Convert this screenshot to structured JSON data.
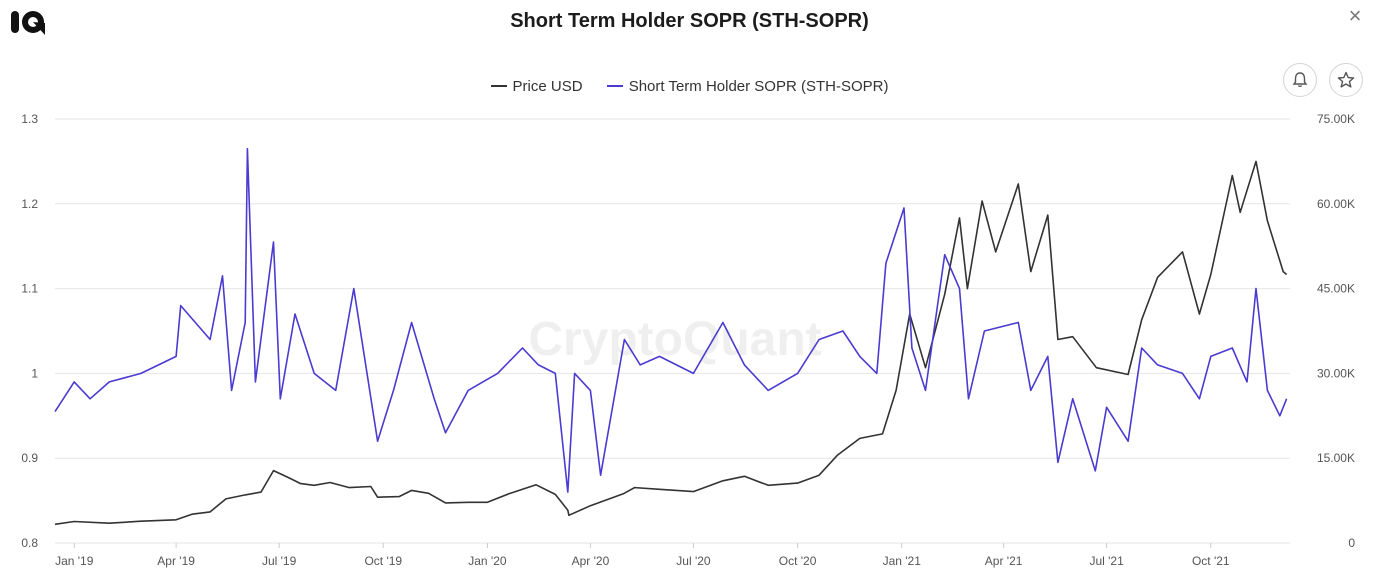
{
  "header": {
    "title": "Short Term Holder SOPR (STH-SOPR)",
    "close_label": "×"
  },
  "colors": {
    "price": "#333333",
    "sopr": "#4a3bd1",
    "grid": "#e6e6e6"
  },
  "watermark": "CryptoQuant",
  "chart_data": {
    "type": "line",
    "title": "Short Term Holder SOPR (STH-SOPR)",
    "legend_placement": "top-center",
    "grid": true,
    "x_range": [
      "2018-12-15",
      "2021-12-10"
    ],
    "x_ticks": [
      {
        "label": "Jan '19",
        "date": "2019-01-01"
      },
      {
        "label": "Apr '19",
        "date": "2019-04-01"
      },
      {
        "label": "Jul '19",
        "date": "2019-07-01"
      },
      {
        "label": "Oct '19",
        "date": "2019-10-01"
      },
      {
        "label": "Jan '20",
        "date": "2020-01-01"
      },
      {
        "label": "Apr '20",
        "date": "2020-04-01"
      },
      {
        "label": "Jul '20",
        "date": "2020-07-01"
      },
      {
        "label": "Oct '20",
        "date": "2020-10-01"
      },
      {
        "label": "Jan '21",
        "date": "2021-01-01"
      },
      {
        "label": "Apr '21",
        "date": "2021-04-01"
      },
      {
        "label": "Jul '21",
        "date": "2021-07-01"
      },
      {
        "label": "Oct '21",
        "date": "2021-10-01"
      }
    ],
    "y_left": {
      "range": [
        0.8,
        1.3
      ],
      "ticks": [
        "0.8",
        "0.9",
        "1",
        "1.1",
        "1.2",
        "1.3"
      ]
    },
    "y_right": {
      "range": [
        0,
        75000
      ],
      "ticks": [
        "0",
        "15.00K",
        "30.00K",
        "45.00K",
        "60.00K",
        "75.00K"
      ]
    },
    "series": [
      {
        "name": "Price USD",
        "axis": "right",
        "points": [
          [
            "2018-12-15",
            3300
          ],
          [
            "2019-01-01",
            3800
          ],
          [
            "2019-02-01",
            3500
          ],
          [
            "2019-03-01",
            3850
          ],
          [
            "2019-04-01",
            4100
          ],
          [
            "2019-04-15",
            5100
          ],
          [
            "2019-05-01",
            5500
          ],
          [
            "2019-05-15",
            7800
          ],
          [
            "2019-06-01",
            8500
          ],
          [
            "2019-06-15",
            9000
          ],
          [
            "2019-06-26",
            12800
          ],
          [
            "2019-07-10",
            11500
          ],
          [
            "2019-07-20",
            10500
          ],
          [
            "2019-08-01",
            10200
          ],
          [
            "2019-08-15",
            10700
          ],
          [
            "2019-09-01",
            9800
          ],
          [
            "2019-09-20",
            10000
          ],
          [
            "2019-09-26",
            8100
          ],
          [
            "2019-10-15",
            8200
          ],
          [
            "2019-10-26",
            9300
          ],
          [
            "2019-11-10",
            8800
          ],
          [
            "2019-11-25",
            7100
          ],
          [
            "2019-12-15",
            7200
          ],
          [
            "2020-01-01",
            7200
          ],
          [
            "2020-01-20",
            8700
          ],
          [
            "2020-02-13",
            10300
          ],
          [
            "2020-03-01",
            8600
          ],
          [
            "2020-03-12",
            5800
          ],
          [
            "2020-03-13",
            4900
          ],
          [
            "2020-04-01",
            6600
          ],
          [
            "2020-04-30",
            8700
          ],
          [
            "2020-05-10",
            9800
          ],
          [
            "2020-06-01",
            9500
          ],
          [
            "2020-07-01",
            9100
          ],
          [
            "2020-07-27",
            11000
          ],
          [
            "2020-08-15",
            11800
          ],
          [
            "2020-09-05",
            10200
          ],
          [
            "2020-10-01",
            10600
          ],
          [
            "2020-10-20",
            12000
          ],
          [
            "2020-11-05",
            15500
          ],
          [
            "2020-11-25",
            18500
          ],
          [
            "2020-12-15",
            19300
          ],
          [
            "2020-12-27",
            27000
          ],
          [
            "2021-01-08",
            40500
          ],
          [
            "2021-01-22",
            31000
          ],
          [
            "2021-02-08",
            44000
          ],
          [
            "2021-02-21",
            57500
          ],
          [
            "2021-02-28",
            45000
          ],
          [
            "2021-03-13",
            60500
          ],
          [
            "2021-03-25",
            51500
          ],
          [
            "2021-04-14",
            63500
          ],
          [
            "2021-04-25",
            48000
          ],
          [
            "2021-05-10",
            58000
          ],
          [
            "2021-05-19",
            36000
          ],
          [
            "2021-06-01",
            36500
          ],
          [
            "2021-06-22",
            31000
          ],
          [
            "2021-07-20",
            29800
          ],
          [
            "2021-08-01",
            39500
          ],
          [
            "2021-08-15",
            47000
          ],
          [
            "2021-09-06",
            51500
          ],
          [
            "2021-09-21",
            40500
          ],
          [
            "2021-10-01",
            47500
          ],
          [
            "2021-10-20",
            65000
          ],
          [
            "2021-10-27",
            58500
          ],
          [
            "2021-11-10",
            67500
          ],
          [
            "2021-11-20",
            57000
          ],
          [
            "2021-12-04",
            48000
          ],
          [
            "2021-12-07",
            47500
          ]
        ]
      },
      {
        "name": "Short Term Holder SOPR (STH-SOPR)",
        "axis": "left",
        "points": [
          [
            "2018-12-15",
            0.955
          ],
          [
            "2019-01-01",
            0.99
          ],
          [
            "2019-01-15",
            0.97
          ],
          [
            "2019-02-01",
            0.99
          ],
          [
            "2019-03-01",
            1.0
          ],
          [
            "2019-04-01",
            1.02
          ],
          [
            "2019-04-05",
            1.08
          ],
          [
            "2019-05-01",
            1.04
          ],
          [
            "2019-05-12",
            1.115
          ],
          [
            "2019-05-20",
            0.98
          ],
          [
            "2019-06-01",
            1.06
          ],
          [
            "2019-06-03",
            1.265
          ],
          [
            "2019-06-10",
            0.99
          ],
          [
            "2019-06-26",
            1.155
          ],
          [
            "2019-07-02",
            0.97
          ],
          [
            "2019-07-15",
            1.07
          ],
          [
            "2019-08-01",
            1.0
          ],
          [
            "2019-08-20",
            0.98
          ],
          [
            "2019-09-05",
            1.1
          ],
          [
            "2019-09-26",
            0.92
          ],
          [
            "2019-10-10",
            0.98
          ],
          [
            "2019-10-26",
            1.06
          ],
          [
            "2019-11-15",
            0.97
          ],
          [
            "2019-11-25",
            0.93
          ],
          [
            "2019-12-15",
            0.98
          ],
          [
            "2020-01-10",
            1.0
          ],
          [
            "2020-02-01",
            1.03
          ],
          [
            "2020-02-15",
            1.01
          ],
          [
            "2020-03-01",
            1.0
          ],
          [
            "2020-03-12",
            0.86
          ],
          [
            "2020-03-18",
            1.0
          ],
          [
            "2020-04-01",
            0.98
          ],
          [
            "2020-04-10",
            0.88
          ],
          [
            "2020-05-01",
            1.04
          ],
          [
            "2020-05-15",
            1.01
          ],
          [
            "2020-06-01",
            1.02
          ],
          [
            "2020-07-01",
            1.0
          ],
          [
            "2020-07-27",
            1.06
          ],
          [
            "2020-08-15",
            1.01
          ],
          [
            "2020-09-05",
            0.98
          ],
          [
            "2020-10-01",
            1.0
          ],
          [
            "2020-10-20",
            1.04
          ],
          [
            "2020-11-10",
            1.05
          ],
          [
            "2020-11-25",
            1.02
          ],
          [
            "2020-12-10",
            1.0
          ],
          [
            "2020-12-18",
            1.13
          ],
          [
            "2021-01-03",
            1.195
          ],
          [
            "2021-01-10",
            1.03
          ],
          [
            "2021-01-22",
            0.98
          ],
          [
            "2021-02-08",
            1.14
          ],
          [
            "2021-02-21",
            1.1
          ],
          [
            "2021-03-01",
            0.97
          ],
          [
            "2021-03-15",
            1.05
          ],
          [
            "2021-04-14",
            1.06
          ],
          [
            "2021-04-25",
            0.98
          ],
          [
            "2021-05-10",
            1.02
          ],
          [
            "2021-05-19",
            0.895
          ],
          [
            "2021-06-01",
            0.97
          ],
          [
            "2021-06-21",
            0.885
          ],
          [
            "2021-07-01",
            0.96
          ],
          [
            "2021-07-20",
            0.92
          ],
          [
            "2021-08-01",
            1.03
          ],
          [
            "2021-08-15",
            1.01
          ],
          [
            "2021-09-06",
            1.0
          ],
          [
            "2021-09-21",
            0.97
          ],
          [
            "2021-10-01",
            1.02
          ],
          [
            "2021-10-20",
            1.03
          ],
          [
            "2021-11-02",
            0.99
          ],
          [
            "2021-11-10",
            1.1
          ],
          [
            "2021-11-20",
            0.98
          ],
          [
            "2021-12-01",
            0.95
          ],
          [
            "2021-12-07",
            0.97
          ]
        ]
      }
    ]
  }
}
